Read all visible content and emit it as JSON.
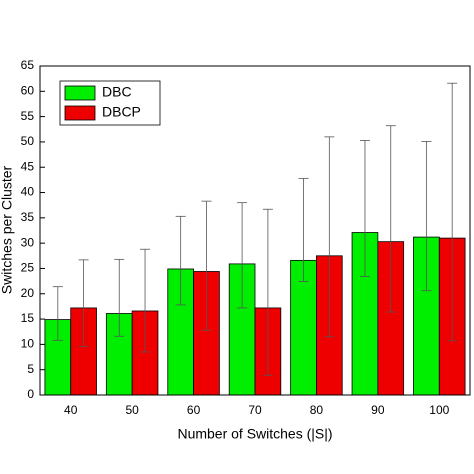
{
  "chart_data": {
    "type": "bar",
    "x_label": "Number of Switches (|S|)",
    "y_label": "Switches per Cluster",
    "categories": [
      "40",
      "50",
      "60",
      "70",
      "80",
      "90",
      "100"
    ],
    "series": [
      {
        "name": "DBC",
        "color": "#00ee00",
        "values": [
          14.9,
          16.1,
          24.9,
          25.9,
          26.6,
          32.1,
          31.2
        ],
        "lower": [
          10.8,
          11.6,
          17.8,
          17.2,
          22.4,
          23.4,
          20.6
        ],
        "upper": [
          21.4,
          26.8,
          35.3,
          38.0,
          42.8,
          50.3,
          50.1
        ]
      },
      {
        "name": "DBCP",
        "color": "#ee0000",
        "values": [
          17.2,
          16.6,
          24.4,
          17.2,
          27.5,
          30.3,
          31.0
        ],
        "lower": [
          9.6,
          8.5,
          12.8,
          3.9,
          11.5,
          16.4,
          10.7
        ],
        "upper": [
          26.7,
          28.8,
          38.3,
          36.7,
          51.0,
          53.2,
          61.6
        ]
      }
    ],
    "ylim": [
      0,
      65
    ],
    "yticks": [
      0,
      5,
      10,
      15,
      20,
      25,
      30,
      35,
      40,
      45,
      50,
      55,
      60,
      65
    ],
    "legend": "upper left"
  }
}
